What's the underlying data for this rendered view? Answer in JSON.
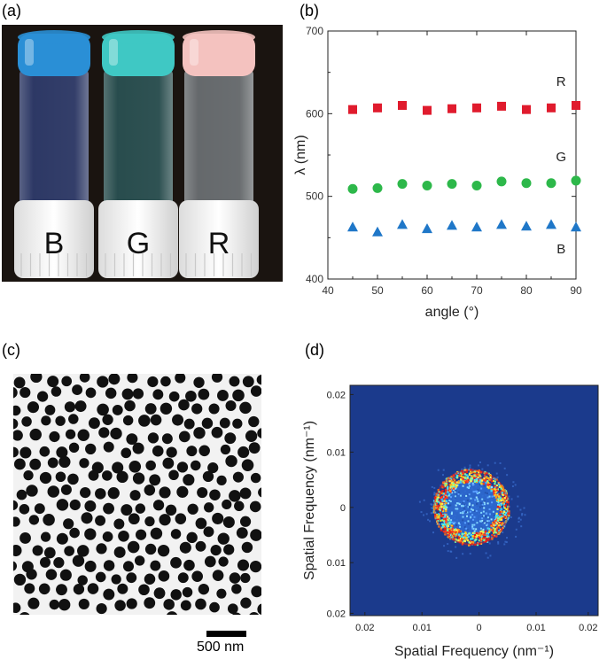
{
  "panels": {
    "a": {
      "label": "(a)",
      "vials": [
        {
          "letter": "B",
          "cap_color": "#2a8fd6",
          "liquid_tint": "#24336b"
        },
        {
          "letter": "G",
          "cap_color": "#3fc8c4",
          "liquid_tint": "#1f4b4d"
        },
        {
          "letter": "R",
          "cap_color": "#f4c2bf",
          "liquid_tint": "#6a6f73"
        }
      ]
    },
    "b": {
      "label": "(b)"
    },
    "c": {
      "label": "(c)",
      "scalebar_label": "500 nm"
    },
    "d": {
      "label": "(d)",
      "xlabel": "Spatial Frequency (nm⁻¹)",
      "ylabel": "Spatial Frequency (nm⁻¹)",
      "xticks": [
        "0.02",
        "0.01",
        "0",
        "0.01",
        "0.02"
      ],
      "yticks": [
        "0.02",
        "0.01",
        "0",
        "0.01",
        "0.02"
      ],
      "background_color": "#1b3a8c"
    }
  },
  "chart_data": [
    {
      "type": "scatter",
      "xlabel": "angle (°)",
      "ylabel": "λ (nm)",
      "xlim": [
        40,
        90
      ],
      "ylim": [
        400,
        700
      ],
      "xticks": [
        40,
        50,
        60,
        70,
        80,
        90
      ],
      "yticks": [
        400,
        500,
        600,
        700
      ],
      "grid": false,
      "series": [
        {
          "name": "R",
          "marker": "square",
          "color": "#e01b2d",
          "x": [
            45,
            50,
            55,
            60,
            65,
            70,
            75,
            80,
            85,
            90
          ],
          "y": [
            605,
            607,
            610,
            604,
            606,
            607,
            609,
            605,
            607,
            610
          ]
        },
        {
          "name": "G",
          "marker": "circle",
          "color": "#2db84a",
          "x": [
            45,
            50,
            55,
            60,
            65,
            70,
            75,
            80,
            85,
            90
          ],
          "y": [
            509,
            510,
            515,
            513,
            515,
            513,
            518,
            516,
            516,
            519
          ]
        },
        {
          "name": "B",
          "marker": "triangle",
          "color": "#1f77c8",
          "x": [
            45,
            50,
            55,
            60,
            65,
            70,
            75,
            80,
            85,
            90
          ],
          "y": [
            463,
            457,
            466,
            461,
            465,
            463,
            466,
            464,
            466,
            463
          ]
        }
      ]
    }
  ]
}
